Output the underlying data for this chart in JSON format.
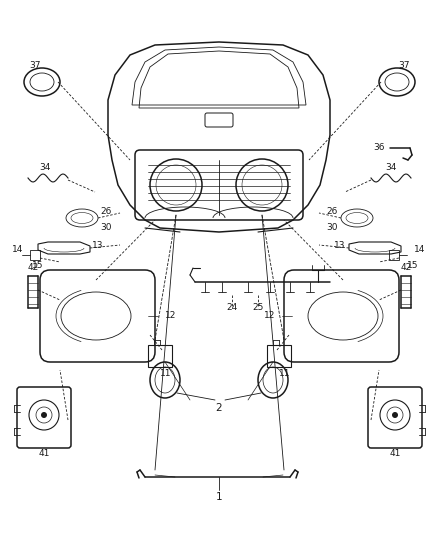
{
  "bg_color": "#ffffff",
  "line_color": "#1a1a1a",
  "fig_width": 4.39,
  "fig_height": 5.33,
  "dpi": 100
}
